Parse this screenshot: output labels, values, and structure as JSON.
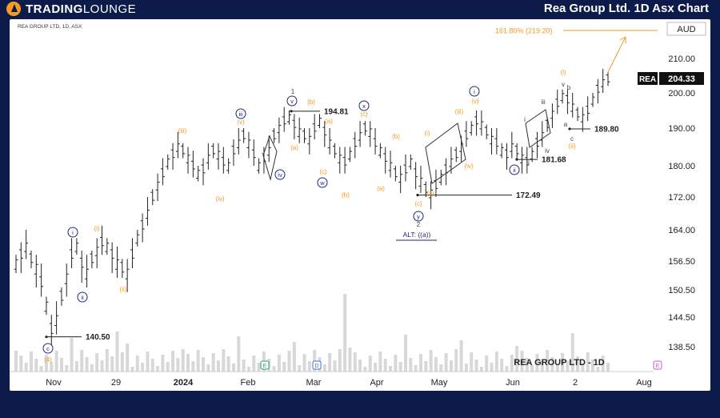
{
  "header": {
    "logo_text_bold": "TRADING",
    "logo_text_light": "LOUNGE",
    "title": "Rea Group Ltd. 1D Asx Chart"
  },
  "chart_meta": {
    "symbol_line": "REA GROUP LTD, 1D, ASX",
    "currency": "AUD",
    "price_tag_symbol": "REA",
    "price_tag_value": "204.33",
    "watermark": "REA GROUP LTD - 1D",
    "target_label": "161.80% (219.20)"
  },
  "colors": {
    "background": "#0d1b4b",
    "accent_orange": "#f59a23",
    "wave_navy": "#1a2a7a",
    "bar_color": "#222222",
    "volume_color": "#d8d8d8"
  },
  "chart_data": {
    "type": "ohlc",
    "y_ticks": [
      "210.00",
      "200.00",
      "190.00",
      "180.00",
      "172.00",
      "164.00",
      "156.50",
      "150.50",
      "144.50",
      "138.50"
    ],
    "x_ticks": [
      "Nov",
      "29",
      "2024",
      "Feb",
      "Mar",
      "Apr",
      "May",
      "Jun",
      "2",
      "Aug"
    ],
    "price_levels": [
      {
        "label": "140.50",
        "value": 140.5
      },
      {
        "label": "194.81",
        "value": 194.81
      },
      {
        "label": "172.49",
        "value": 172.49
      },
      {
        "label": "181.68",
        "value": 181.68
      },
      {
        "label": "189.80",
        "value": 189.8
      },
      {
        "label": "161.80% (219.20)",
        "value": 219.2
      }
    ],
    "wave_labels_primary": [
      "i",
      "ii",
      "iii",
      "iv",
      "v",
      "w",
      "x",
      "y",
      "c",
      "i",
      "ii"
    ],
    "wave_labels_minor": [
      "(i)",
      "(ii)",
      "(iii)",
      "(iv)",
      "(v)",
      "(a)",
      "(b)",
      "(c)",
      "(a)",
      "(b)",
      "(c)",
      "(b)",
      "(a)",
      "(c)",
      "(i)",
      "(ii)",
      "(iii)",
      "(iv)",
      "(v)",
      "(4)",
      "(i)",
      "(ii)"
    ],
    "wave_labels_sub": [
      "1",
      "2",
      "i",
      "ii",
      "iii",
      "iv",
      "v",
      "a",
      "b",
      "c"
    ],
    "alt_label": "ALT: ((a))",
    "event_markers": [
      "E",
      "D",
      "E"
    ],
    "series": [
      {
        "values": [
          156,
          158,
          160,
          157,
          155,
          152,
          147,
          142,
          144,
          149,
          153,
          158,
          160,
          156,
          154,
          157,
          159,
          161,
          160,
          158,
          156,
          155,
          154,
          158,
          162,
          165,
          168,
          172,
          175,
          178,
          181,
          183,
          185,
          184,
          182,
          180,
          178,
          179,
          182,
          184,
          183,
          181,
          180,
          184,
          186,
          188,
          186,
          183,
          180,
          182,
          184,
          188,
          190,
          192,
          193,
          191,
          189,
          188,
          187,
          190,
          192,
          189,
          186,
          184,
          182,
          181,
          183,
          186,
          188,
          190,
          189,
          186,
          184,
          182,
          180,
          178,
          177,
          179,
          181,
          178,
          176,
          174,
          173,
          175,
          177,
          179,
          181,
          183,
          185,
          188,
          190,
          192,
          191,
          189,
          187,
          186,
          184,
          183,
          185,
          184,
          182,
          181,
          183,
          186,
          188,
          191,
          194,
          197,
          199,
          198,
          196,
          194,
          193,
          195,
          198,
          201,
          203,
          204
        ]
      }
    ]
  }
}
